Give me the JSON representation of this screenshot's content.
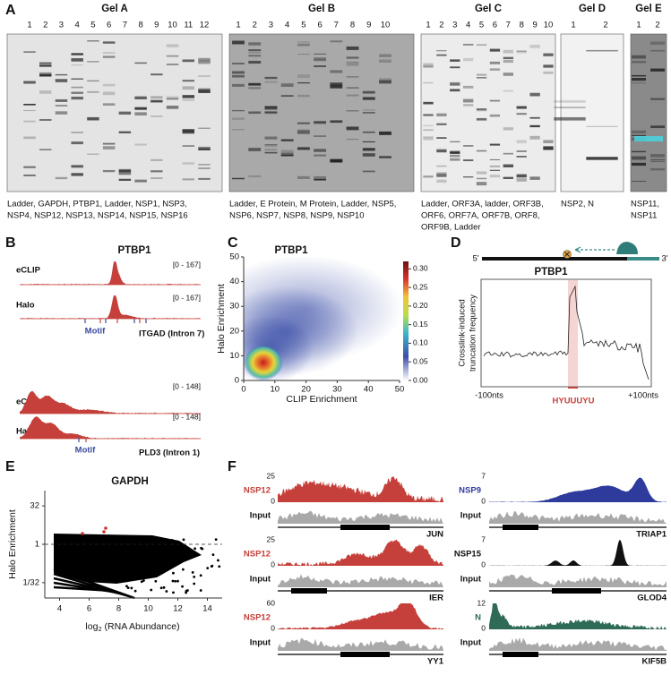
{
  "panel_labels": [
    "A",
    "B",
    "C",
    "D",
    "E",
    "F"
  ],
  "gels": [
    {
      "title": "Gel A",
      "lanes": [
        1,
        2,
        3,
        4,
        5,
        6,
        7,
        8,
        9,
        10,
        11,
        12
      ],
      "caption": [
        "Ladder, GAPDH, PTBP1, Ladder,  NSP1, NSP3,",
        "NSP4, NSP12, NSP13, NSP14, NSP15, NSP16"
      ]
    },
    {
      "title": "Gel B",
      "lanes": [
        1,
        2,
        3,
        4,
        5,
        6,
        7,
        8,
        9,
        10
      ],
      "caption": [
        "Ladder, E Protein, M Protein, Ladder, NSP5,",
        "NSP6, NSP7, NSP8, NSP9, NSP10"
      ]
    },
    {
      "title": "Gel C",
      "lanes": [
        1,
        2,
        3,
        4,
        5,
        6,
        7,
        8,
        9,
        10
      ],
      "caption": [
        "Ladder, ORF3A, ladder, ORF3B,",
        "ORF6, ORF7A, ORF7B, ORF8,",
        "ORF9B, Ladder"
      ]
    },
    {
      "title": "Gel D",
      "lanes": [
        1,
        2
      ],
      "caption": [
        "NSP2, N"
      ]
    },
    {
      "title": "Gel E",
      "lanes": [
        1,
        2
      ],
      "caption": [
        "NSP11,",
        "NSP11"
      ]
    }
  ],
  "panel_b": {
    "title": "PTBP1",
    "loci": [
      {
        "tracks": [
          {
            "name": "eCLIP",
            "range": "[0 - 167]"
          },
          {
            "name": "Halo",
            "range": "[0 - 167]"
          }
        ],
        "motif": "Motif",
        "gene": "ITGAD (Intron 7)"
      },
      {
        "tracks": [
          {
            "name": "eCLIP",
            "range": "[0 - 148]"
          },
          {
            "name": "Halo",
            "range": "[0 - 148]"
          }
        ],
        "motif": "Motif",
        "gene": "PLD3 (Intron 1)"
      }
    ]
  },
  "panel_c": {
    "title": "PTBP1",
    "x_label": "CLIP Enrichment",
    "y_label": "Halo Enrichment",
    "xlim": [
      0,
      50
    ],
    "ylim": [
      0,
      50
    ],
    "xticks": [
      0,
      10,
      20,
      30,
      40,
      50
    ],
    "yticks": [
      0,
      10,
      20,
      30,
      40,
      50
    ],
    "colorbar": {
      "lim": [
        0,
        0.32
      ],
      "ticks": [
        {
          "value": 0,
          "label": "0.00"
        },
        {
          "value": 0.05,
          "label": "0.05"
        },
        {
          "value": 0.1,
          "label": "0.10"
        },
        {
          "value": 0.15,
          "label": "0.15"
        },
        {
          "value": 0.2,
          "label": "0.20"
        },
        {
          "value": 0.25,
          "label": "0.25"
        },
        {
          "value": 0.3,
          "label": "0.30"
        }
      ]
    }
  },
  "panel_d": {
    "title": "PTBP1",
    "five_prime": "5'",
    "three_prime": "3'",
    "y_label": [
      "Crosslink-induced",
      "truncation frequency"
    ],
    "x_labels": [
      "-100nts",
      "HYUUUYU",
      "+100nts"
    ]
  },
  "panel_e": {
    "title": "GAPDH",
    "y_label": "Halo Enrichment",
    "x_label": [
      "log",
      "2",
      " (RNA Abundance)"
    ],
    "log_y": true,
    "xlim": [
      3,
      15
    ],
    "xticks": [
      4,
      6,
      8,
      10,
      12,
      14
    ],
    "ylim": [
      0.0078125,
      128
    ],
    "yticks": [
      32,
      1,
      {
        "value": 0.03125,
        "label": "1/32"
      }
    ]
  },
  "panel_f": {
    "tracks": [
      {
        "name": "NSP12",
        "color": "#c5403a",
        "max": 25,
        "min": 0,
        "input": "Input",
        "gene": "JUN"
      },
      {
        "name": "NSP12",
        "color": "#c5403a",
        "max": 25,
        "min": 0,
        "input": "Input",
        "gene": "IER"
      },
      {
        "name": "NSP12",
        "color": "#c5403a",
        "max": 60,
        "min": 0,
        "input": "Input",
        "gene": "YY1"
      },
      {
        "name": "NSP9",
        "color": "#2f3b9c",
        "max": 7,
        "min": 0,
        "input": "Input",
        "gene": "TRIAP1"
      },
      {
        "name": "NSP15",
        "color": "#111111",
        "max": 7,
        "min": 0,
        "input": "Input",
        "gene": "GLOD4"
      },
      {
        "name": "N",
        "color": "#2e6a55",
        "max": 12,
        "min": 0,
        "input": "Input",
        "gene": "KIF5B"
      }
    ]
  }
}
